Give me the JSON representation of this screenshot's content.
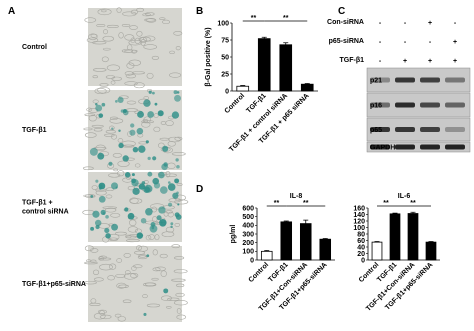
{
  "panels": {
    "a": "A",
    "b": "B",
    "c": "C",
    "d": "D"
  },
  "microscopy": {
    "rows": [
      [
        "Control"
      ],
      [
        "TGF-β1"
      ],
      [
        "TGF-β1 +",
        "control siRNA"
      ],
      [
        "TGF-β1+p65-siRNA"
      ]
    ]
  },
  "blot": {
    "conditions": [
      {
        "label": "Con-siRNA",
        "signs": [
          "-",
          "-",
          "+",
          "-"
        ]
      },
      {
        "label": "p65-siRNA",
        "signs": [
          "-",
          "-",
          "-",
          "+"
        ]
      },
      {
        "label": "TGF-β1",
        "signs": [
          "-",
          "+",
          "+",
          "+"
        ]
      }
    ],
    "bands": [
      "p21",
      "p16",
      "p65",
      "GAPDH"
    ]
  },
  "chart_data": [
    {
      "type": "bar",
      "ylabel": "β-Gal positive (%)",
      "categories": [
        "Control",
        "TGF-β1",
        "TGF-β1 + control siRNA",
        "TGF-β1 + p65 siRNA"
      ],
      "values": [
        7,
        77,
        68,
        10
      ],
      "errors": [
        1,
        2,
        3,
        1
      ],
      "colors": [
        "#ffffff",
        "#000000",
        "#000000",
        "#000000"
      ],
      "ylim": [
        0,
        100
      ],
      "yticks": [
        0,
        25,
        50,
        75,
        100
      ],
      "annotations": [
        {
          "label": "**",
          "between": [
            "Control",
            "TGF-β1"
          ]
        },
        {
          "label": "**",
          "between": [
            "TGF-β1",
            "TGF-β1 + p65 siRNA"
          ]
        }
      ]
    },
    {
      "type": "bar",
      "title": "IL-8",
      "ylabel": "pg/ml",
      "categories": [
        "Control",
        "TGF-β1",
        "TGF-β1+Con-siRNA",
        "TGF-β1+p65-siRNA"
      ],
      "values": [
        100,
        440,
        420,
        240
      ],
      "errors": [
        10,
        10,
        40,
        8
      ],
      "colors": [
        "#ffffff",
        "#000000",
        "#000000",
        "#000000"
      ],
      "ylim": [
        0,
        600
      ],
      "yticks": [
        0,
        100,
        200,
        300,
        400,
        500,
        600
      ],
      "annotations": [
        {
          "label": "**",
          "between": [
            "Control",
            "TGF-β1"
          ]
        },
        {
          "label": "**",
          "between": [
            "TGF-β1",
            "TGF-β1+p65-siRNA"
          ]
        }
      ]
    },
    {
      "type": "bar",
      "title": "IL-6",
      "categories": [
        "Control",
        "TGF-β1",
        "TGF-β1+Con-siRNA",
        "TGF-β1+p65-siRNA"
      ],
      "values": [
        55,
        142,
        143,
        55
      ],
      "errors": [
        2,
        2,
        4,
        2
      ],
      "colors": [
        "#ffffff",
        "#000000",
        "#000000",
        "#000000"
      ],
      "ylim": [
        0,
        160
      ],
      "yticks": [
        0,
        20,
        40,
        60,
        80,
        100,
        120,
        140,
        160
      ],
      "annotations": [
        {
          "label": "**",
          "between": [
            "Control",
            "TGF-β1"
          ]
        },
        {
          "label": "**",
          "between": [
            "TGF-β1",
            "TGF-β1+p65-siRNA"
          ]
        }
      ]
    }
  ]
}
